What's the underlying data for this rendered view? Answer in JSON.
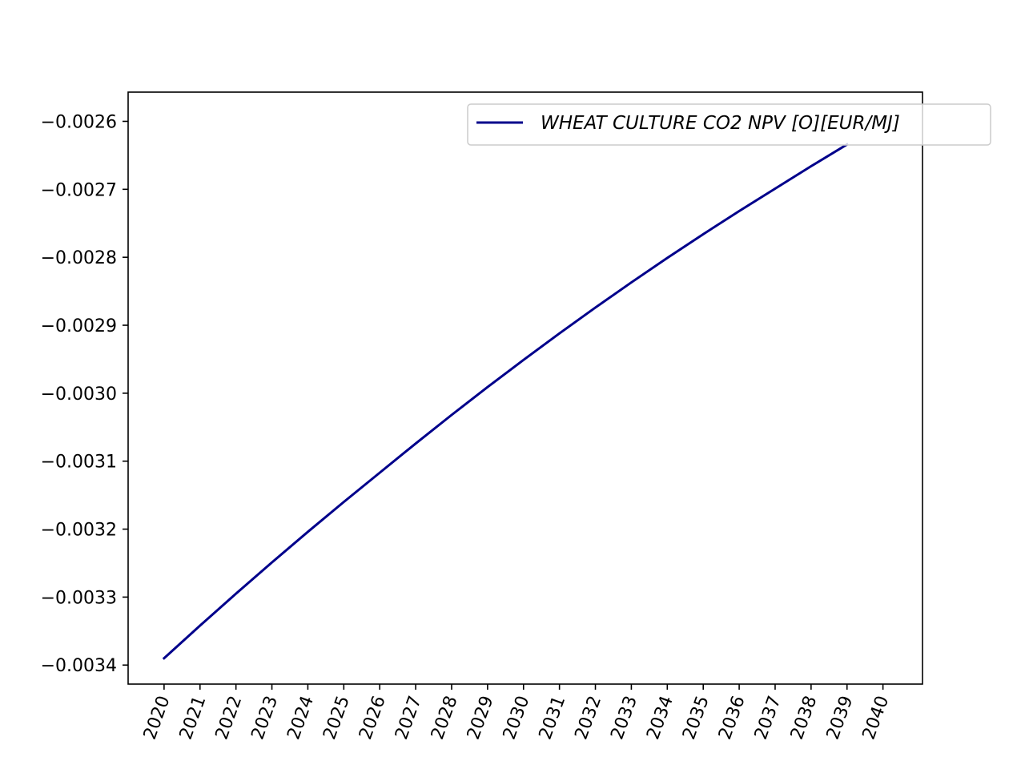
{
  "chart_data": {
    "type": "line",
    "title": "",
    "xlabel": "",
    "ylabel": "",
    "x": [
      2020,
      2021,
      2022,
      2023,
      2024,
      2025,
      2026,
      2027,
      2028,
      2029,
      2030,
      2031,
      2032,
      2033,
      2034,
      2035,
      2036,
      2037,
      2038,
      2039,
      2040
    ],
    "x_tick_labels": [
      "2020",
      "2021",
      "2022",
      "2023",
      "2024",
      "2025",
      "2026",
      "2027",
      "2028",
      "2029",
      "2030",
      "2031",
      "2032",
      "2033",
      "2034",
      "2035",
      "2036",
      "2037",
      "2038",
      "2039",
      "2040"
    ],
    "x_tick_rotation_deg": 70,
    "y_ticks": [
      -0.0034,
      -0.0033,
      -0.0032,
      -0.0031,
      -0.003,
      -0.0029,
      -0.0028,
      -0.0027,
      -0.0026
    ],
    "y_tick_labels": [
      "−0.0034",
      "−0.0033",
      "−0.0032",
      "−0.0031",
      "−0.0030",
      "−0.0029",
      "−0.0028",
      "−0.0027",
      "−0.0026"
    ],
    "xlim": [
      2019,
      2041.1
    ],
    "ylim": [
      -0.003428,
      -0.002557
    ],
    "grid": false,
    "legend_position": "upper right",
    "series": [
      {
        "name": "WHEAT CULTURE CO2 NPV [O][EUR/MJ]",
        "color": "#00008b",
        "x": [
          2020,
          2021,
          2022,
          2023,
          2024,
          2025,
          2026,
          2027,
          2028,
          2029,
          2030,
          2031,
          2032,
          2033,
          2034,
          2035,
          2036,
          2037,
          2038,
          2039
        ],
        "values": [
          -0.00339,
          -0.003342,
          -0.003295,
          -0.003249,
          -0.003204,
          -0.00316,
          -0.003117,
          -0.003074,
          -0.003032,
          -0.002991,
          -0.002951,
          -0.002912,
          -0.002874,
          -0.002837,
          -0.002801,
          -0.002766,
          -0.002732,
          -0.002699,
          -0.002666,
          -0.002634
        ]
      }
    ]
  }
}
